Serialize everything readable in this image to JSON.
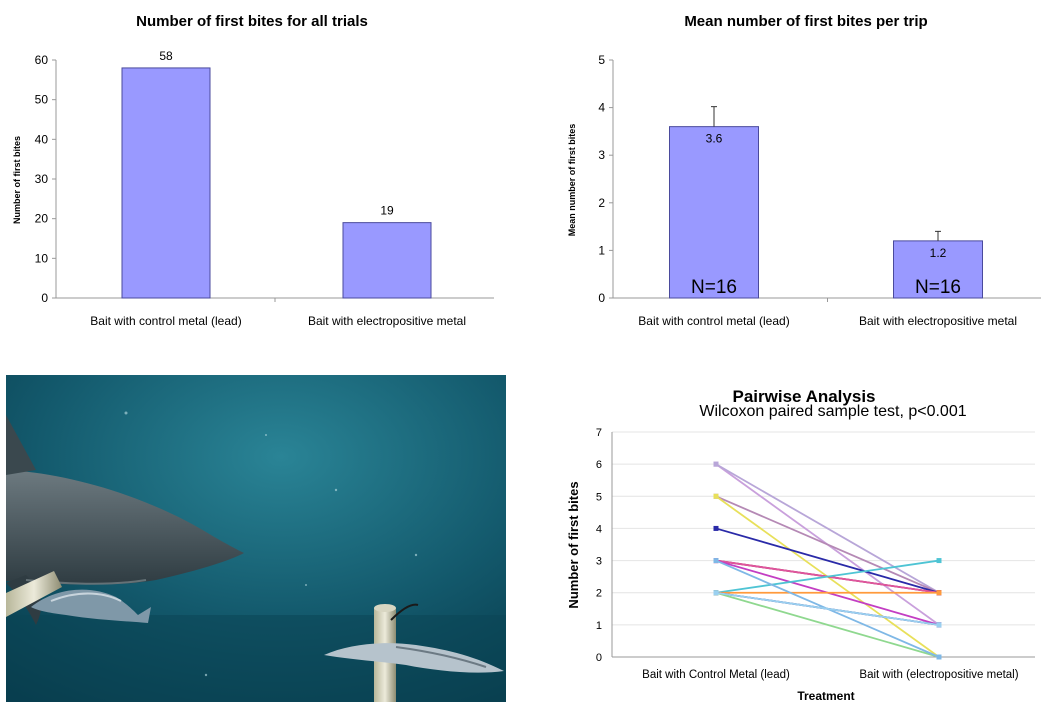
{
  "colors": {
    "bar_fill": "#9999ff",
    "bar_stroke": "#4a4a9c",
    "axis": "#999999",
    "grid": "#e4e4e4",
    "text": "#000000",
    "water_light": "#1f6e82",
    "water_dark": "#063c4c"
  },
  "photo": {
    "icons": [
      "shark-silhouette-icon",
      "baitfish-icon",
      "metal-rod-icon"
    ]
  },
  "chart_data": [
    {
      "type": "bar",
      "title": "Number of first bites for all trials",
      "ylabel": "Number of first bites",
      "xlabel": "",
      "categories": [
        "Bait with control metal (lead)",
        "Bait with electropositive metal"
      ],
      "values": [
        58,
        19
      ],
      "data_labels": [
        "58",
        "19"
      ],
      "ylim": [
        0,
        60
      ],
      "yticks": [
        "0",
        "10",
        "20",
        "30",
        "40",
        "50",
        "60"
      ],
      "grid": false,
      "legend": "none"
    },
    {
      "type": "bar",
      "title": "Mean number of first bites per trip",
      "ylabel": "Mean number of first bites",
      "xlabel": "",
      "categories": [
        "Bait with control metal (lead)",
        "Bait with electropositive metal"
      ],
      "values": [
        3.6,
        1.2
      ],
      "error": [
        0.42,
        0.2
      ],
      "data_labels": [
        "3.6",
        "1.2"
      ],
      "n_labels": [
        "N=16",
        "N=16"
      ],
      "ylim": [
        0,
        5
      ],
      "yticks": [
        "0",
        "1",
        "2",
        "3",
        "4",
        "5"
      ],
      "grid": false,
      "legend": "none"
    },
    {
      "type": "line",
      "title": "Pairwise Analysis",
      "subtitle": "Wilcoxon paired sample test, p<0.001",
      "xlabel": "Treatment",
      "ylabel": "Number of first bites",
      "categories": [
        "Bait with Control Metal (lead)",
        "Bait with (electropositive metal)"
      ],
      "ylim": [
        0,
        7
      ],
      "yticks": [
        "0",
        "1",
        "2",
        "3",
        "4",
        "5",
        "6",
        "7"
      ],
      "grid": true,
      "legend": "none",
      "series": [
        {
          "values": [
            6,
            1
          ],
          "color": "#c9a0dc"
        },
        {
          "values": [
            6,
            2
          ],
          "color": "#b8a6d8"
        },
        {
          "values": [
            5,
            2
          ],
          "color": "#b589b5"
        },
        {
          "values": [
            5,
            0
          ],
          "color": "#e8e05a"
        },
        {
          "values": [
            4,
            2
          ],
          "color": "#2a2aa8"
        },
        {
          "values": [
            3,
            2
          ],
          "color": "#8b1a3a"
        },
        {
          "values": [
            3,
            2
          ],
          "color": "#e0559e"
        },
        {
          "values": [
            3,
            1
          ],
          "color": "#c33ec3"
        },
        {
          "values": [
            2,
            3
          ],
          "color": "#4ec4d4"
        },
        {
          "values": [
            2,
            2
          ],
          "color": "#ff9a3c"
        },
        {
          "values": [
            2,
            1
          ],
          "color": "#2a2a8c"
        },
        {
          "values": [
            2,
            0
          ],
          "color": "#8fd88f"
        },
        {
          "values": [
            3,
            0
          ],
          "color": "#7fb8e6"
        },
        {
          "values": [
            2,
            1
          ],
          "color": "#9ad0f0"
        }
      ]
    }
  ]
}
